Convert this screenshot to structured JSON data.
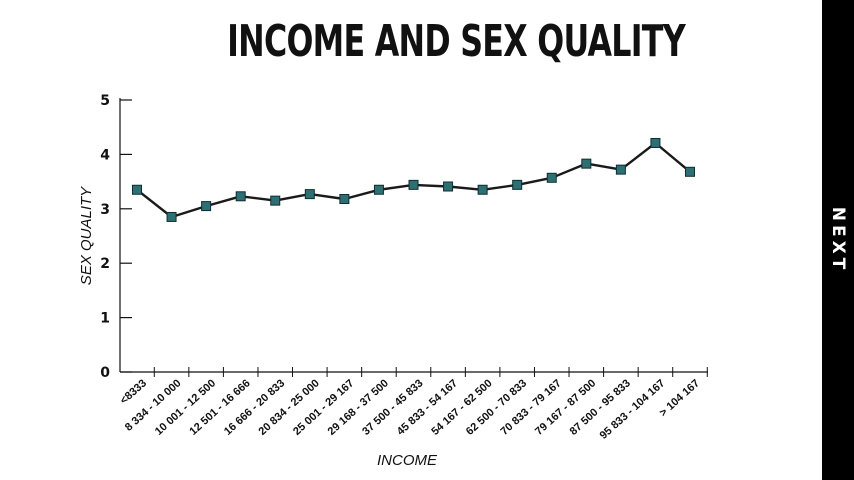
{
  "page": {
    "title": "INCOME AND SEX QUALITY",
    "next_label": "NEXT"
  },
  "colors": {
    "line": "#1a1a1a",
    "marker_fill": "#2e6f74",
    "marker_stroke": "#0f2e30",
    "axis": "#111111",
    "next_bar": "#000000"
  },
  "chart_data": {
    "type": "line",
    "title": "INCOME AND SEX QUALITY",
    "xlabel": "INCOME",
    "ylabel": "SEX QUALITY",
    "ylim": [
      0,
      5
    ],
    "yticks": [
      "0",
      "1",
      "2",
      "3",
      "4",
      "5"
    ],
    "grid": false,
    "categories": [
      "<8333",
      "8 334 - 10 000",
      "10 001 - 12 500",
      "12 501 - 16 666",
      "16 666 - 20 833",
      "20 834 - 25 000",
      "25 001 - 29 167",
      "29 168 - 37 500",
      "37 500 - 45 833",
      "45 833 - 54 167",
      "54 167 - 62 500",
      "62 500 - 70 833",
      "70 833 - 79 167",
      "79 167 - 87 500",
      "87 500 - 95 833",
      "95 833 - 104 167",
      "> 104 167"
    ],
    "values": [
      3.35,
      2.85,
      3.05,
      3.23,
      3.15,
      3.27,
      3.18,
      3.35,
      3.44,
      3.41,
      3.35,
      3.44,
      3.57,
      3.83,
      3.72,
      4.21,
      3.68
    ]
  }
}
